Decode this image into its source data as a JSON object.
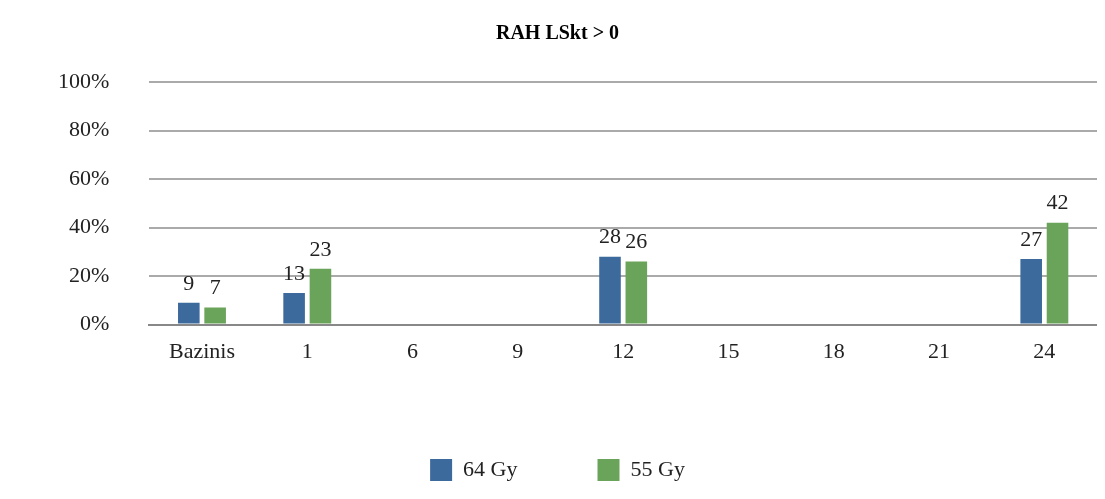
{
  "chart_data": {
    "type": "bar",
    "title": "RAH LSkt > 0",
    "categories": [
      "Bazinis",
      "1",
      "6",
      "9",
      "12",
      "15",
      "18",
      "21",
      "24"
    ],
    "series": [
      {
        "name": "64 Gy",
        "color": "#3c6a9c",
        "values": [
          9,
          13,
          null,
          null,
          28,
          null,
          null,
          null,
          27
        ]
      },
      {
        "name": "55 Gy",
        "color": "#6aa45a",
        "values": [
          7,
          23,
          null,
          null,
          26,
          null,
          null,
          null,
          42
        ]
      }
    ],
    "ylim": [
      0,
      100
    ],
    "yticks": [
      {
        "value": 0,
        "label": "0%"
      },
      {
        "value": 20,
        "label": "20%"
      },
      {
        "value": 40,
        "label": "40%"
      },
      {
        "value": 60,
        "label": "60%"
      },
      {
        "value": 80,
        "label": "80%"
      },
      {
        "value": 100,
        "label": "100%"
      }
    ],
    "grid": "y",
    "legend": "bottom",
    "data_labels": true
  }
}
